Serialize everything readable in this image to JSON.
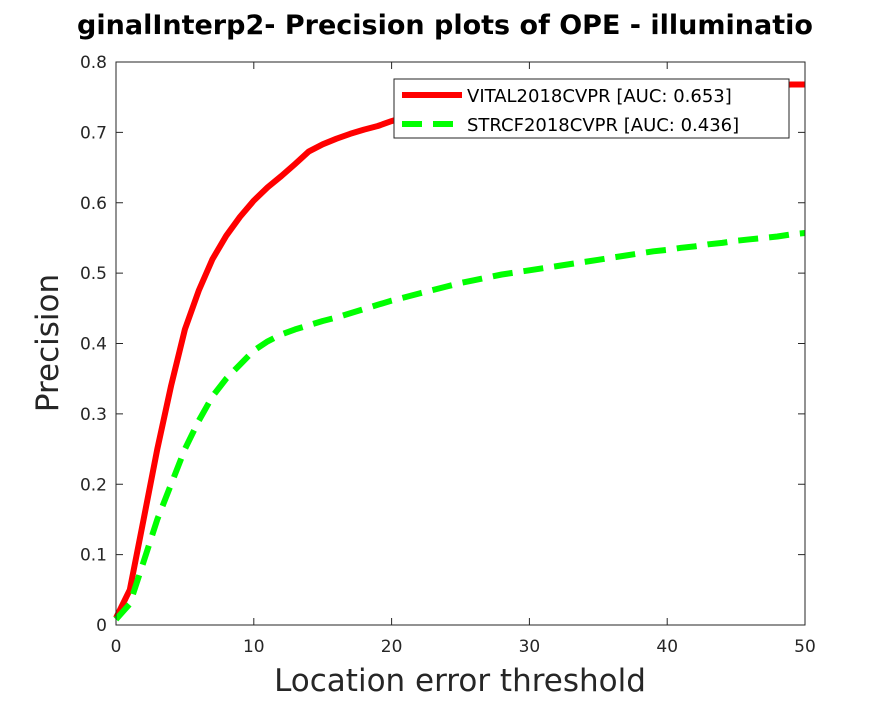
{
  "chart_data": {
    "type": "line",
    "title": "ginalInterp2- Precision plots of OPE - illuminatio",
    "xlabel": "Location error threshold",
    "ylabel": "Precision",
    "xlim": [
      0,
      50
    ],
    "ylim": [
      0,
      0.8
    ],
    "xticks": [
      "0",
      "10",
      "20",
      "30",
      "40",
      "50"
    ],
    "yticks": [
      "0",
      "0.1",
      "0.2",
      "0.3",
      "0.4",
      "0.5",
      "0.6",
      "0.7",
      "0.8"
    ],
    "grid": false,
    "legend_position": "top-right",
    "x": [
      0,
      1,
      2,
      3,
      4,
      5,
      6,
      7,
      8,
      9,
      10,
      11,
      12,
      13,
      14,
      15,
      16,
      17,
      18,
      19,
      20,
      21,
      22,
      23,
      24,
      25,
      26,
      27,
      28,
      29,
      30,
      31,
      32,
      33,
      34,
      35,
      36,
      37,
      38,
      39,
      40,
      41,
      42,
      43,
      44,
      45,
      46,
      47,
      48,
      49,
      50
    ],
    "series": [
      {
        "name": "VITAL2018CVPR [AUC: 0.653]",
        "color": "#ff0000",
        "style": "solid",
        "values": [
          0.01,
          0.05,
          0.15,
          0.25,
          0.34,
          0.42,
          0.475,
          0.52,
          0.553,
          0.58,
          0.603,
          0.622,
          0.638,
          0.655,
          0.673,
          0.683,
          0.691,
          0.698,
          0.704,
          0.709,
          0.716,
          0.722,
          0.727,
          0.732,
          0.736,
          0.74,
          0.743,
          0.746,
          0.748,
          0.75,
          0.752,
          0.754,
          0.755,
          0.756,
          0.757,
          0.758,
          0.759,
          0.76,
          0.761,
          0.762,
          0.762,
          0.763,
          0.764,
          0.764,
          0.765,
          0.766,
          0.766,
          0.767,
          0.767,
          0.768,
          0.768
        ]
      },
      {
        "name": "STRCF2018CVPR [AUC: 0.436]",
        "color": "#00ff00",
        "style": "dashed",
        "values": [
          0.008,
          0.03,
          0.09,
          0.15,
          0.2,
          0.25,
          0.29,
          0.325,
          0.35,
          0.37,
          0.39,
          0.403,
          0.413,
          0.42,
          0.426,
          0.432,
          0.437,
          0.443,
          0.449,
          0.455,
          0.461,
          0.466,
          0.471,
          0.476,
          0.481,
          0.486,
          0.49,
          0.494,
          0.498,
          0.501,
          0.504,
          0.507,
          0.51,
          0.513,
          0.516,
          0.519,
          0.522,
          0.525,
          0.528,
          0.531,
          0.533,
          0.536,
          0.538,
          0.541,
          0.543,
          0.546,
          0.548,
          0.55,
          0.552,
          0.555,
          0.557
        ]
      }
    ]
  }
}
